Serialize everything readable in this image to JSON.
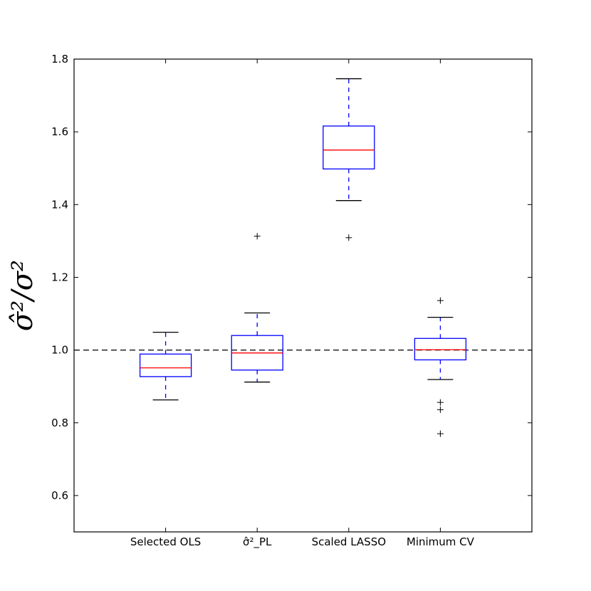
{
  "chart_data": {
    "type": "boxplot",
    "categories": [
      "Selected OLS",
      "σ̂²_PL",
      "Scaled LASSO",
      "Minimum CV"
    ],
    "ylabel": "σ̂²/σ²",
    "ylim": [
      0.5,
      1.8
    ],
    "yticks": [
      0.6,
      0.8,
      1.0,
      1.2,
      1.4,
      1.6,
      1.8
    ],
    "reference_line": 1.0,
    "grid": false,
    "boxes": [
      {
        "category": "Selected OLS",
        "whisker_low": 0.863,
        "q1": 0.927,
        "median": 0.951,
        "q3": 0.989,
        "whisker_high": 1.049,
        "outliers": []
      },
      {
        "category": "σ̂²_PL",
        "whisker_low": 0.912,
        "q1": 0.945,
        "median": 0.992,
        "q3": 1.04,
        "whisker_high": 1.102,
        "outliers": [
          1.313
        ]
      },
      {
        "category": "Scaled LASSO",
        "whisker_low": 1.411,
        "q1": 1.498,
        "median": 1.55,
        "q3": 1.616,
        "whisker_high": 1.746,
        "outliers": [
          1.309
        ]
      },
      {
        "category": "Minimum CV",
        "whisker_low": 0.919,
        "q1": 0.973,
        "median": 1.001,
        "q3": 1.032,
        "whisker_high": 1.09,
        "outliers": [
          1.136,
          0.856,
          0.836,
          0.77
        ]
      }
    ],
    "colors": {
      "box": "#0000ff",
      "median": "#ff0000",
      "whisker_cap": "#000000",
      "outlier": "#000000",
      "reference_line": "#000000"
    }
  }
}
